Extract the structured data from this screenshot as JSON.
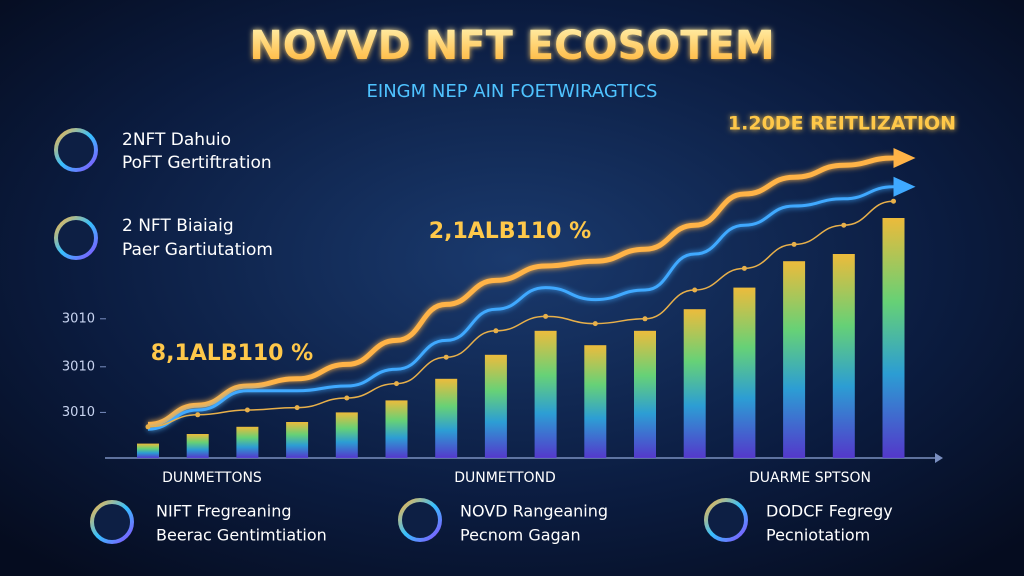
{
  "chart_data": {
    "type": "bar",
    "title": "NOVVD NFT ECOSOTEM",
    "subtitle": "EINGM NEP AIN FOETWIRAGTICS",
    "annotations": [
      "1.20DE REITLIZATION",
      "2,1ALB110 %",
      "8,1ALB110 %"
    ],
    "legend_items": [
      {
        "line1": "2NFT Dahuio",
        "line2": "PoFT Gertiftration"
      },
      {
        "line1": "2 NFT Biaiaig",
        "line2": "Paer Gartiutatiom"
      }
    ],
    "x_labels": [
      "DUNMETTONS",
      "DUNMETTOND",
      "DUARME SPTSON"
    ],
    "footer_items": [
      {
        "line1": "NIFT Fregreaning",
        "line2": "Beerac Gentimtiation"
      },
      {
        "line1": "NOVD Rangeaning",
        "line2": "Pecnom Gagan"
      },
      {
        "line1": "DODCF Fegregy",
        "line2": "Pecniotatiom"
      }
    ],
    "values": [
      6,
      10,
      13,
      15,
      19,
      24,
      33,
      43,
      53,
      47,
      53,
      62,
      71,
      82,
      85,
      100
    ],
    "series": [
      {
        "color": "#ffb347",
        "values": [
          14,
          22,
          30,
          33,
          39,
          49,
          64,
          74,
          80,
          82,
          87,
          97,
          110,
          117,
          122,
          125
        ]
      },
      {
        "color": "#3fa9ff",
        "values": [
          12,
          20,
          28,
          28,
          30,
          37,
          49,
          62,
          71,
          66,
          70,
          85,
          97,
          105,
          108,
          113
        ]
      },
      {
        "color": "#e8b04a",
        "values": [
          13,
          18,
          20,
          21,
          25,
          31,
          42,
          53,
          59,
          56,
          58,
          70,
          79,
          89,
          97,
          107
        ]
      }
    ],
    "ylim": [
      0,
      130
    ],
    "yticks": [
      {
        "value": 19,
        "label": "3010"
      },
      {
        "value": 38,
        "label": "3010"
      },
      {
        "value": 58,
        "label": "3010"
      }
    ]
  }
}
